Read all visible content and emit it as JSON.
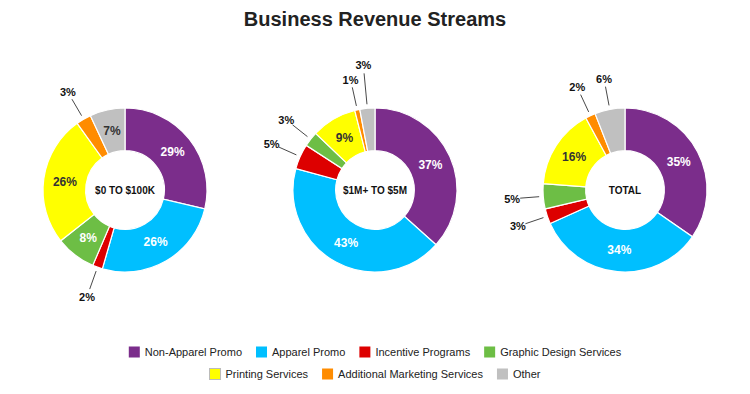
{
  "chart_data": {
    "type": "pie",
    "title": "Business Revenue Streams",
    "categories": [
      "Non-Apparel Promo",
      "Apparel Promo",
      "Incentive Programs",
      "Graphic Design Services",
      "Printing Services",
      "Additional Marketing Services",
      "Other"
    ],
    "colors": [
      "#7B2D8B",
      "#00BFFF",
      "#DD0000",
      "#6DBE45",
      "#FFFF00",
      "#FF8C00",
      "#C0C0C0"
    ],
    "series": [
      {
        "name": "$0 TO $100K",
        "values": [
          29,
          26,
          2,
          8,
          26,
          3,
          7
        ],
        "value_labels": [
          "29%",
          "26%",
          "2%",
          "8%",
          "26%",
          "3%",
          "7%"
        ]
      },
      {
        "name": "$1M+ TO $5M",
        "values": [
          37,
          43,
          5,
          3,
          9,
          1,
          3
        ],
        "value_labels": [
          "37%",
          "43%",
          "5%",
          "3%",
          "9%",
          "1%",
          "3%"
        ]
      },
      {
        "name": "TOTAL",
        "values": [
          35,
          34,
          3,
          5,
          16,
          2,
          6
        ],
        "value_labels": [
          "35%",
          "34%",
          "3%",
          "5%",
          "16%",
          "2%",
          "6%"
        ]
      }
    ],
    "data_labels": true,
    "legend": "bottom"
  }
}
